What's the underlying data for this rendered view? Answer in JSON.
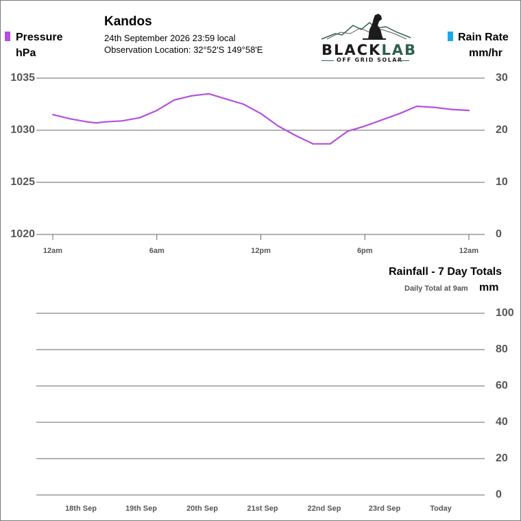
{
  "header": {
    "station": "Kandos",
    "date_line": "24th September 2026  23:59 local",
    "location_line": "Observation Location:   32°52'S 149°58'E"
  },
  "logo": {
    "brand_primary": "BLACK",
    "brand_secondary": "LAB",
    "tagline": "OFF GRID SOLAR",
    "brand_color": "#1b1b1b",
    "accent_color": "#2e5e4e"
  },
  "legend": {
    "pressure_label": "Pressure",
    "pressure_unit": "hPa",
    "pressure_color": "#b44fe0",
    "rain_label": "Rain Rate",
    "rain_unit": "mm/hr",
    "rain_color": "#1ea7e6"
  },
  "rainfall": {
    "title": "Rainfall - 7 Day Totals",
    "subtitle": "Daily Total at 9am",
    "unit": "mm"
  },
  "chart_data": [
    {
      "type": "line",
      "x_tick_labels": [
        "12am",
        "6am",
        "12pm",
        "6pm",
        "12am"
      ],
      "x_tick_hours": [
        0,
        6,
        12,
        18,
        24
      ],
      "y_left": {
        "label": "Pressure hPa",
        "ticks": [
          1035,
          1030,
          1025,
          1020
        ],
        "ylim": [
          1020,
          1035
        ]
      },
      "y_right": {
        "label": "Rain Rate mm/hr",
        "ticks": [
          30,
          20,
          10,
          0
        ],
        "ylim": [
          0,
          30
        ]
      },
      "grid": true,
      "series": [
        {
          "name": "Pressure",
          "axis": "left",
          "color": "#b44fe0",
          "x_hours": [
            0,
            1,
            2,
            2.5,
            3,
            4,
            5,
            6,
            7,
            8,
            9,
            10,
            11,
            12,
            13,
            14,
            15,
            16,
            17,
            18,
            19,
            20,
            21,
            22,
            23,
            24
          ],
          "y": [
            1031.5,
            1031.1,
            1030.8,
            1030.7,
            1030.8,
            1030.9,
            1031.2,
            1031.9,
            1032.9,
            1033.3,
            1033.5,
            1033.0,
            1032.5,
            1031.6,
            1030.4,
            1029.5,
            1028.7,
            1028.7,
            1029.9,
            1030.4,
            1031.0,
            1031.6,
            1032.3,
            1032.2,
            1032.0,
            1031.9
          ]
        },
        {
          "name": "Rain Rate",
          "axis": "right",
          "color": "#1ea7e6",
          "x_hours": [],
          "y": []
        }
      ]
    },
    {
      "type": "bar",
      "title": "Rainfall - 7 Day Totals",
      "ylabel": "mm",
      "categories": [
        "18th Sep",
        "19th Sep",
        "20th Sep",
        "21st Sep",
        "22nd Sep",
        "23rd Sep",
        "Today"
      ],
      "values": [
        0,
        0,
        0,
        0,
        0,
        0,
        0
      ],
      "y_ticks": [
        100,
        80,
        60,
        40,
        20,
        0
      ],
      "ylim": [
        0,
        100
      ],
      "grid": true
    }
  ]
}
